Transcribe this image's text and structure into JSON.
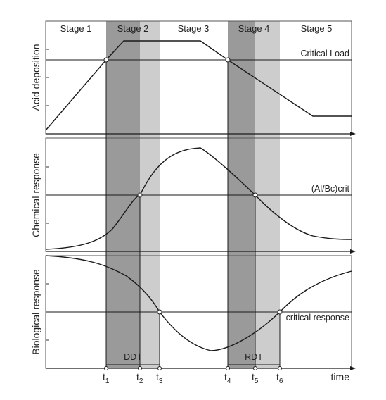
{
  "stages": [
    "Stage 1",
    "Stage 2",
    "Stage 3",
    "Stage 4",
    "Stage 5"
  ],
  "panels": {
    "top": {
      "ylabel": "Acid deposition",
      "threshold_label": "Critical Load"
    },
    "middle": {
      "ylabel": "Chemical response",
      "threshold_label": "(Al/Bc)crit"
    },
    "bottom": {
      "ylabel": "Biological response",
      "threshold_label": "critical response"
    }
  },
  "delays": {
    "ddt": "DDT",
    "rdt": "RDT"
  },
  "time_markers": [
    {
      "base": "t",
      "sub": "1"
    },
    {
      "base": "t",
      "sub": "2"
    },
    {
      "base": "t",
      "sub": "3"
    },
    {
      "base": "t",
      "sub": "4"
    },
    {
      "base": "t",
      "sub": "5"
    },
    {
      "base": "t",
      "sub": "6"
    }
  ],
  "xaxis_label": "time",
  "colors": {
    "dark_band": "#9a9a9a",
    "light_band": "#cdcdcd",
    "line": "#1a1a1a",
    "frame": "#555555"
  }
}
